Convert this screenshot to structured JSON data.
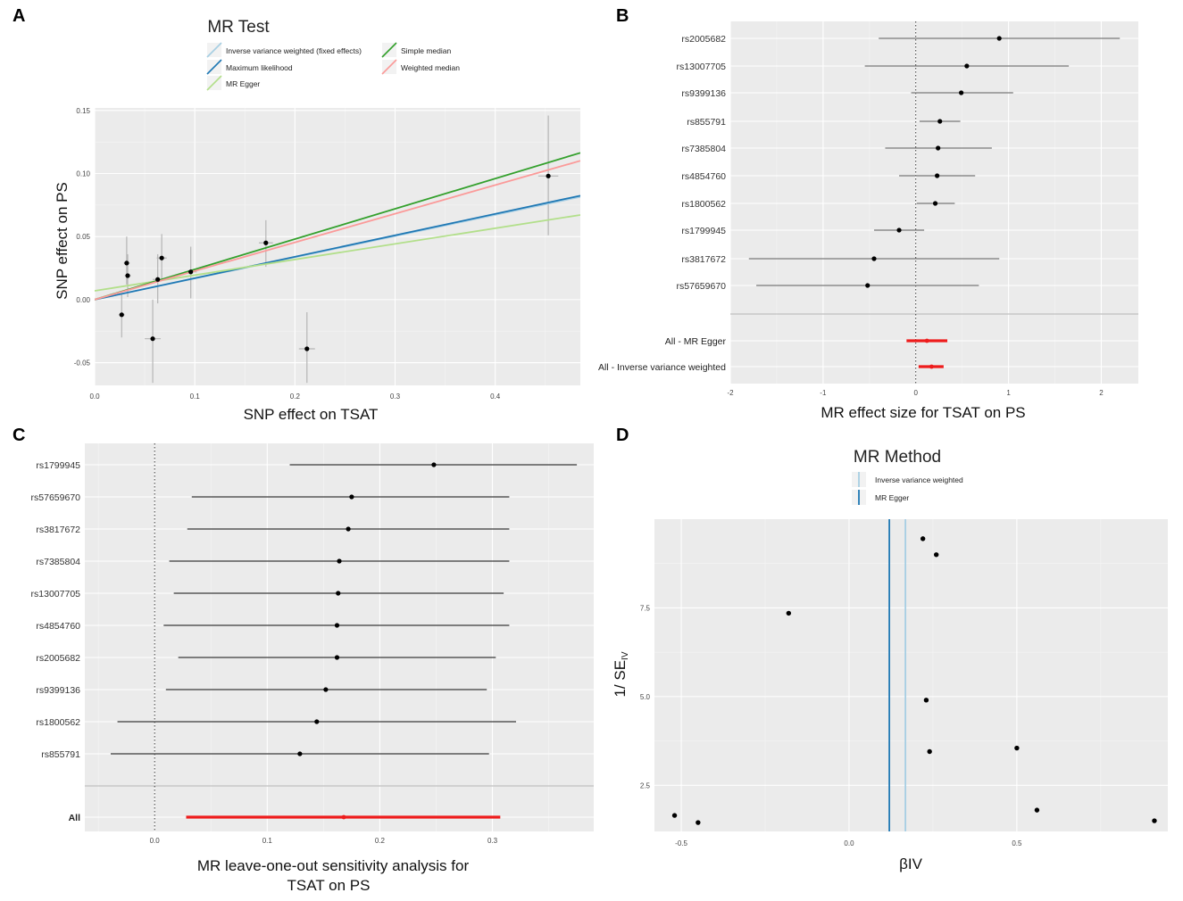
{
  "panel_letters": [
    "A",
    "B",
    "C",
    "D"
  ],
  "chart_data": [
    {
      "panel": "A",
      "type": "scatter",
      "title": "MR Test",
      "xlabel": "SNP effect on TSAT",
      "ylabel": "SNP effect on PS",
      "xlim": [
        0.0,
        0.485
      ],
      "ylim": [
        -0.068,
        0.152
      ],
      "xticks": [
        "0.0",
        "0.1",
        "0.2",
        "0.3",
        "0.4"
      ],
      "xtick_values": [
        0.0,
        0.1,
        0.2,
        0.3,
        0.4
      ],
      "yticks": [
        "-0.05",
        "0.00",
        "0.05",
        "0.10",
        "0.15"
      ],
      "ytick_values": [
        -0.05,
        0.0,
        0.05,
        0.1,
        0.15
      ],
      "legend": [
        {
          "label": "Inverse variance weighted (fixed effects)",
          "color": "#a6cee3"
        },
        {
          "label": "Maximum likelihood",
          "color": "#1f78b4"
        },
        {
          "label": "MR Egger",
          "color": "#b2df8a"
        },
        {
          "label": "Simple median",
          "color": "#33a02c"
        },
        {
          "label": "Weighted median",
          "color": "#fb9a99"
        }
      ],
      "lines": [
        {
          "name": "Inverse variance weighted (fixed effects)",
          "intercept": 0.0,
          "slope": 0.168,
          "color": "#a6cee3"
        },
        {
          "name": "Maximum likelihood",
          "intercept": 0.0,
          "slope": 0.17,
          "color": "#1f78b4"
        },
        {
          "name": "MR Egger",
          "intercept": 0.007,
          "slope": 0.124,
          "color": "#b2df8a"
        },
        {
          "name": "Simple median",
          "intercept": 0.0,
          "slope": 0.24,
          "color": "#33a02c"
        },
        {
          "name": "Weighted median",
          "intercept": 0.0,
          "slope": 0.227,
          "color": "#fb9a99"
        }
      ],
      "points": [
        {
          "x": 0.027,
          "y": -0.012,
          "ylo": -0.03,
          "yhi": 0.005,
          "xlo": 0.024,
          "xhi": 0.03
        },
        {
          "x": 0.032,
          "y": 0.029,
          "ylo": 0.012,
          "yhi": 0.05,
          "xlo": 0.029,
          "xhi": 0.035
        },
        {
          "x": 0.033,
          "y": 0.019,
          "ylo": 0.002,
          "yhi": 0.036,
          "xlo": 0.03,
          "xhi": 0.036
        },
        {
          "x": 0.058,
          "y": -0.031,
          "ylo": -0.066,
          "yhi": 0.0,
          "xlo": 0.05,
          "xhi": 0.066
        },
        {
          "x": 0.063,
          "y": 0.016,
          "ylo": -0.003,
          "yhi": 0.036,
          "xlo": 0.058,
          "xhi": 0.068
        },
        {
          "x": 0.067,
          "y": 0.033,
          "ylo": 0.015,
          "yhi": 0.052,
          "xlo": 0.062,
          "xhi": 0.072
        },
        {
          "x": 0.096,
          "y": 0.022,
          "ylo": 0.001,
          "yhi": 0.042,
          "xlo": 0.09,
          "xhi": 0.102
        },
        {
          "x": 0.171,
          "y": 0.045,
          "ylo": 0.026,
          "yhi": 0.063,
          "xlo": 0.164,
          "xhi": 0.178
        },
        {
          "x": 0.212,
          "y": -0.039,
          "ylo": -0.066,
          "yhi": -0.01,
          "xlo": 0.204,
          "xhi": 0.22
        },
        {
          "x": 0.453,
          "y": 0.098,
          "ylo": 0.051,
          "yhi": 0.146,
          "xlo": 0.443,
          "xhi": 0.463
        }
      ]
    },
    {
      "panel": "B",
      "type": "forest",
      "xlabel": "MR effect size for TSAT on PS",
      "xlim": [
        -2.0,
        2.4
      ],
      "xticks": [
        "-2",
        "-1",
        "0",
        "1",
        "2"
      ],
      "xtick_values": [
        -2,
        -1,
        0,
        1,
        2
      ],
      "snps": [
        {
          "label": "rs2005682",
          "est": 0.9,
          "lo": -0.4,
          "hi": 2.2
        },
        {
          "label": "rs13007705",
          "est": 0.55,
          "lo": -0.55,
          "hi": 1.65
        },
        {
          "label": "rs9399136",
          "est": 0.49,
          "lo": -0.05,
          "hi": 1.05
        },
        {
          "label": "rs855791",
          "est": 0.26,
          "lo": 0.04,
          "hi": 0.48
        },
        {
          "label": "rs7385804",
          "est": 0.24,
          "lo": -0.33,
          "hi": 0.82
        },
        {
          "label": "rs4854760",
          "est": 0.23,
          "lo": -0.18,
          "hi": 0.64
        },
        {
          "label": "rs1800562",
          "est": 0.21,
          "lo": 0.01,
          "hi": 0.42
        },
        {
          "label": "rs1799945",
          "est": -0.18,
          "lo": -0.45,
          "hi": 0.09
        },
        {
          "label": "rs3817672",
          "est": -0.45,
          "lo": -1.8,
          "hi": 0.9
        },
        {
          "label": "rs57659670",
          "est": -0.52,
          "lo": -1.72,
          "hi": 0.68
        }
      ],
      "summary": [
        {
          "label": "All - MR Egger",
          "est": 0.12,
          "lo": -0.1,
          "hi": 0.34
        },
        {
          "label": "All - Inverse variance weighted",
          "est": 0.17,
          "lo": 0.03,
          "hi": 0.3
        }
      ]
    },
    {
      "panel": "C",
      "type": "forest",
      "xlabel_line1": "MR leave-one-out sensitivity analysis for",
      "xlabel_line2": "TSAT on PS",
      "xlim": [
        -0.062,
        0.39
      ],
      "xticks": [
        "0.0",
        "0.1",
        "0.2",
        "0.3"
      ],
      "xtick_values": [
        0.0,
        0.1,
        0.2,
        0.3
      ],
      "snps": [
        {
          "label": "rs1799945",
          "est": 0.248,
          "lo": 0.12,
          "hi": 0.375
        },
        {
          "label": "rs57659670",
          "est": 0.175,
          "lo": 0.033,
          "hi": 0.315
        },
        {
          "label": "rs3817672",
          "est": 0.172,
          "lo": 0.029,
          "hi": 0.315
        },
        {
          "label": "rs7385804",
          "est": 0.164,
          "lo": 0.013,
          "hi": 0.315
        },
        {
          "label": "rs13007705",
          "est": 0.163,
          "lo": 0.017,
          "hi": 0.31
        },
        {
          "label": "rs4854760",
          "est": 0.162,
          "lo": 0.008,
          "hi": 0.315
        },
        {
          "label": "rs2005682",
          "est": 0.162,
          "lo": 0.021,
          "hi": 0.303
        },
        {
          "label": "rs9399136",
          "est": 0.152,
          "lo": 0.01,
          "hi": 0.295
        },
        {
          "label": "rs1800562",
          "est": 0.144,
          "lo": -0.033,
          "hi": 0.321
        },
        {
          "label": "rs855791",
          "est": 0.129,
          "lo": -0.039,
          "hi": 0.297
        }
      ],
      "summary": [
        {
          "label": "All",
          "est": 0.168,
          "lo": 0.028,
          "hi": 0.307
        }
      ]
    },
    {
      "panel": "D",
      "type": "scatter",
      "title": "MR Method",
      "xlabel": "βIV",
      "ylabel_main": "1/ SE",
      "ylabel_sub": "IV",
      "xlim": [
        -0.58,
        0.95
      ],
      "ylim": [
        1.2,
        10.0
      ],
      "xticks": [
        "-0.5",
        "0.0",
        "0.5"
      ],
      "xtick_values": [
        -0.5,
        0.0,
        0.5
      ],
      "yticks": [
        "2.5",
        "5.0",
        "7.5"
      ],
      "ytick_values": [
        2.5,
        5.0,
        7.5
      ],
      "legend": [
        {
          "label": "Inverse variance weighted",
          "color": "#a6cee3"
        },
        {
          "label": "MR Egger",
          "color": "#1f78b4"
        }
      ],
      "vlines": [
        {
          "name": "Inverse variance weighted",
          "x": 0.168,
          "color": "#a6cee3"
        },
        {
          "name": "MR Egger",
          "x": 0.12,
          "color": "#1f78b4"
        }
      ],
      "points": [
        {
          "x": 0.22,
          "y": 9.45
        },
        {
          "x": 0.26,
          "y": 9.0
        },
        {
          "x": -0.18,
          "y": 7.35
        },
        {
          "x": 0.23,
          "y": 4.9
        },
        {
          "x": 0.24,
          "y": 3.45
        },
        {
          "x": 0.5,
          "y": 3.55
        },
        {
          "x": -0.52,
          "y": 1.65
        },
        {
          "x": -0.45,
          "y": 1.45
        },
        {
          "x": 0.56,
          "y": 1.8
        },
        {
          "x": 0.91,
          "y": 1.5
        }
      ]
    }
  ]
}
